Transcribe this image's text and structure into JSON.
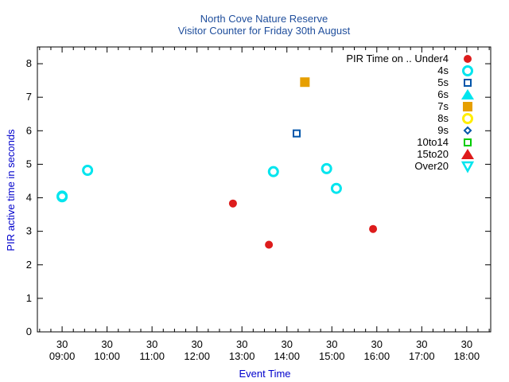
{
  "chart_data": {
    "type": "scatter",
    "title": "North Cove Nature Reserve",
    "subtitle": "Visitor Counter for Friday 30th August",
    "xlabel": "Event Time",
    "ylabel": "PIR active time in seconds",
    "xlim": [
      "08:27",
      "18:32"
    ],
    "ylim": [
      0,
      8.5
    ],
    "y_ticks": [
      "0",
      "1",
      "2",
      "3",
      "4",
      "5",
      "6",
      "7",
      "8"
    ],
    "x_ticks": [
      {
        "top": "30",
        "bottom": "09:00"
      },
      {
        "top": "30",
        "bottom": "10:00"
      },
      {
        "top": "30",
        "bottom": "11:00"
      },
      {
        "top": "30",
        "bottom": "12:00"
      },
      {
        "top": "30",
        "bottom": "13:00"
      },
      {
        "top": "30",
        "bottom": "14:00"
      },
      {
        "top": "30",
        "bottom": "15:00"
      },
      {
        "top": "30",
        "bottom": "16:00"
      },
      {
        "top": "30",
        "bottom": "17:00"
      },
      {
        "top": "30",
        "bottom": "18:00"
      }
    ],
    "grid": false,
    "legend_position": "top-right",
    "legend_title": "PIR Time on ..",
    "series": [
      {
        "name": "Under4",
        "marker": "filled-circle",
        "color": "#dd1c1c",
        "points": [
          {
            "x": "12:48",
            "y": 3.83
          },
          {
            "x": "13:36",
            "y": 2.6
          },
          {
            "x": "15:55",
            "y": 3.07
          }
        ]
      },
      {
        "name": "4s",
        "marker": "open-circle",
        "color": "#00e5ee",
        "points": [
          {
            "x": "09:00",
            "y": 4.03
          },
          {
            "x": "09:00",
            "y": 4.05
          },
          {
            "x": "09:34",
            "y": 4.82
          },
          {
            "x": "13:42",
            "y": 4.78
          },
          {
            "x": "14:53",
            "y": 4.87
          },
          {
            "x": "15:06",
            "y": 4.28
          }
        ]
      },
      {
        "name": "5s",
        "marker": "open-square",
        "color": "#0055aa",
        "points": [
          {
            "x": "14:13",
            "y": 5.92
          }
        ]
      },
      {
        "name": "6s",
        "marker": "filled-triangle",
        "color": "#00e5ee",
        "points": []
      },
      {
        "name": "7s",
        "marker": "filled-square",
        "color": "#e69f00",
        "points": [
          {
            "x": "14:24",
            "y": 7.45
          }
        ]
      },
      {
        "name": "8s",
        "marker": "open-circle",
        "color": "#ffee00",
        "points": []
      },
      {
        "name": "9s",
        "marker": "open-diamond",
        "color": "#0055aa",
        "points": []
      },
      {
        "name": "10to14",
        "marker": "open-square",
        "color": "#00cc00",
        "points": []
      },
      {
        "name": "15to20",
        "marker": "filled-triangle",
        "color": "#dd1c1c",
        "points": []
      },
      {
        "name": "Over20",
        "marker": "open-triangle-down",
        "color": "#00e5ee",
        "points": []
      }
    ]
  }
}
